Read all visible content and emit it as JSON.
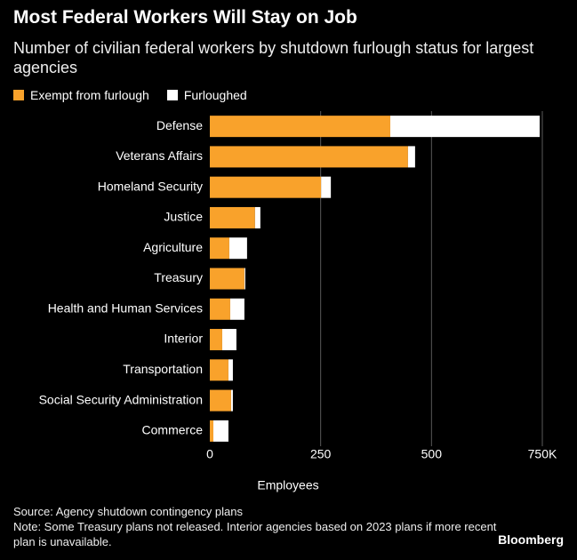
{
  "chart_data": {
    "type": "bar",
    "title": "Most Federal Workers Will Stay on Job",
    "subtitle": "Number of civilian federal workers by shutdown furlough status for largest agencies",
    "categories": [
      "Defense",
      "Veterans Affairs",
      "Homeland Security",
      "Justice",
      "Agriculture",
      "Treasury",
      "Health and Human Services",
      "Interior",
      "Transportation",
      "Social Security Administration",
      "Commerce"
    ],
    "series": [
      {
        "name": "Exempt from furlough",
        "color": "#f9a22b",
        "values": [
          407,
          447,
          251,
          102,
          44,
          78,
          46,
          28,
          42,
          48,
          8
        ]
      },
      {
        "name": "Furloughed",
        "color": "#ffffff",
        "values": [
          337,
          16,
          22,
          12,
          40,
          2,
          32,
          32,
          10,
          4,
          34
        ]
      }
    ],
    "xlabel": "Employees",
    "xlim": [
      0,
      750
    ],
    "xticks": [
      0,
      250,
      500,
      {
        "value": 750,
        "label": "750K"
      }
    ],
    "grid": true,
    "source": "Source: Agency shutdown contingency plans",
    "note": "Note: Some Treasury plans not released. Interior agencies based on 2023 plans if more recent plan is unavailable.",
    "brand": "Bloomberg"
  }
}
